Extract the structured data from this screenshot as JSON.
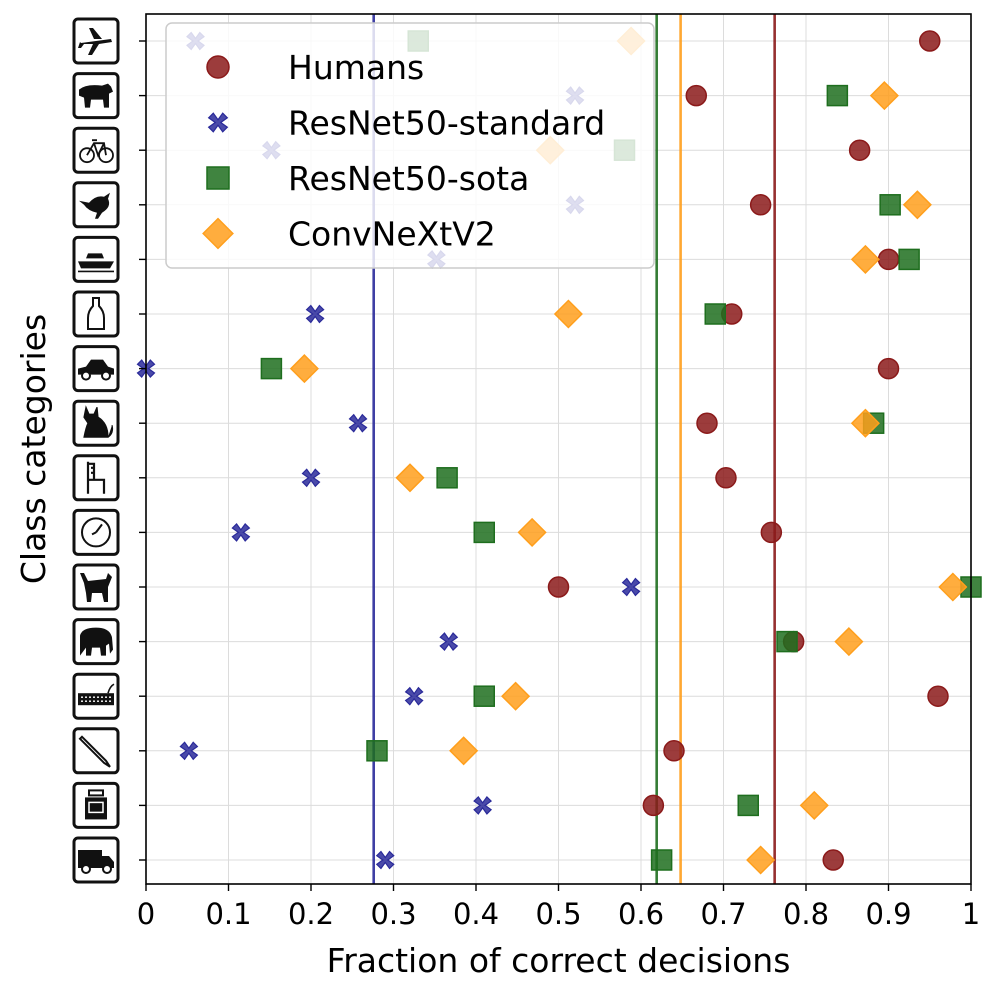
{
  "chart_data": {
    "type": "scatter",
    "xlabel": "Fraction of correct decisions",
    "ylabel": "Class categories",
    "xlim": [
      0,
      1
    ],
    "xticks": [
      0,
      0.1,
      0.2,
      0.3,
      0.4,
      0.5,
      0.6,
      0.7,
      0.8,
      0.9,
      1
    ],
    "xtick_labels": [
      "0",
      "0.1",
      "0.2",
      "0.3",
      "0.4",
      "0.5",
      "0.6",
      "0.7",
      "0.8",
      "0.9",
      "1"
    ],
    "grid": true,
    "legend_position": "top-left",
    "categories": [
      "airplane",
      "bear",
      "bicycle",
      "bird",
      "boat",
      "bottle",
      "car",
      "cat",
      "chair",
      "clock",
      "dog",
      "elephant",
      "keyboard",
      "knife",
      "oven",
      "truck"
    ],
    "series": [
      {
        "name": "Humans",
        "marker": "circle",
        "color": "#8b1a1a",
        "mean": 0.762,
        "values": [
          0.95,
          0.667,
          0.865,
          0.745,
          0.9,
          0.71,
          0.9,
          0.68,
          0.703,
          0.758,
          0.5,
          0.785,
          0.96,
          0.64,
          0.615,
          0.833
        ]
      },
      {
        "name": "ResNet50-standard",
        "marker": "x",
        "color": "#2a2a9a",
        "mean": 0.276,
        "values": [
          0.06,
          0.52,
          0.152,
          0.52,
          0.352,
          0.205,
          0.0,
          0.257,
          0.2,
          0.115,
          0.588,
          0.367,
          0.325,
          0.052,
          0.408,
          0.29
        ]
      },
      {
        "name": "ResNet50-sota",
        "marker": "square",
        "color": "#1e6e1e",
        "mean": 0.619,
        "values": [
          0.33,
          0.838,
          0.58,
          0.902,
          0.925,
          0.69,
          0.152,
          0.882,
          0.365,
          0.41,
          1.0,
          0.777,
          0.41,
          0.28,
          0.73,
          0.625
        ]
      },
      {
        "name": "ConvNeXtV2",
        "marker": "diamond",
        "color": "#ff9f1c",
        "mean": 0.648,
        "values": [
          0.588,
          0.895,
          0.49,
          0.935,
          0.872,
          0.512,
          0.192,
          0.872,
          0.32,
          0.468,
          0.978,
          0.852,
          0.448,
          0.385,
          0.81,
          0.745
        ]
      }
    ]
  }
}
